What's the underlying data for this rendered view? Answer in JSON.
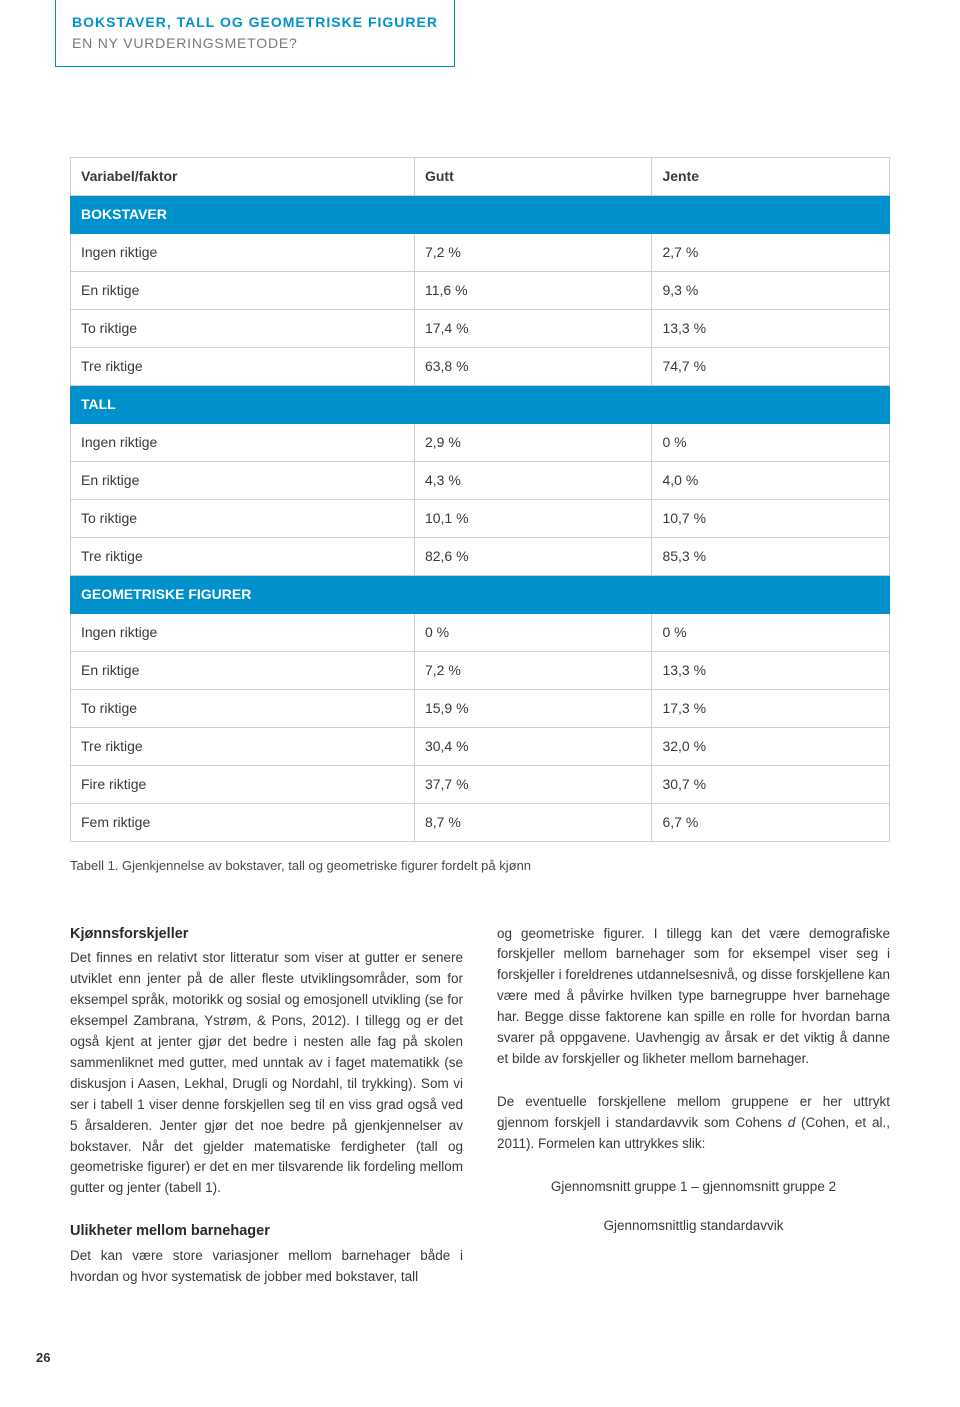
{
  "header": {
    "title": "BOKSTAVER, TALL OG GEOMETRISKE FIGURER",
    "subtitle": "EN NY VURDERINGSMETODE?"
  },
  "table": {
    "columns": [
      "Variabel/faktor",
      "Gutt",
      "Jente"
    ],
    "sections": [
      {
        "label": "BOKSTAVER",
        "rows": [
          [
            "Ingen riktige",
            "7,2 %",
            "2,7 %"
          ],
          [
            "En riktige",
            "11,6 %",
            "9,3 %"
          ],
          [
            "To riktige",
            "17,4 %",
            "13,3 %"
          ],
          [
            "Tre riktige",
            "63,8 %",
            "74,7 %"
          ]
        ]
      },
      {
        "label": "TALL",
        "rows": [
          [
            "Ingen riktige",
            "2,9 %",
            "0 %"
          ],
          [
            "En riktige",
            "4,3 %",
            "4,0 %"
          ],
          [
            "To riktige",
            "10,1 %",
            "10,7 %"
          ],
          [
            "Tre riktige",
            "82,6 %",
            "85,3 %"
          ]
        ]
      },
      {
        "label": "GEOMETRISKE FIGURER",
        "rows": [
          [
            "Ingen riktige",
            "0 %",
            "0 %"
          ],
          [
            "En riktige",
            "7,2 %",
            "13,3 %"
          ],
          [
            "To riktige",
            "15,9 %",
            "17,3 %"
          ],
          [
            "Tre riktige",
            "30,4 %",
            "32,0 %"
          ],
          [
            "Fire riktige",
            "37,7 %",
            "30,7 %"
          ],
          [
            "Fem riktige",
            "8,7 %",
            "6,7 %"
          ]
        ]
      }
    ]
  },
  "caption": "Tabell 1. Gjenkjennelse av bokstaver, tall og geometriske figurer fordelt på kjønn",
  "left": {
    "heading1": "Kjønnsforskjeller",
    "para1": "Det finnes en relativt stor litteratur som viser at gutter er senere utviklet enn jenter på de aller fleste utviklingsområder, som for eksempel språk, motorikk og sosial og emosjonell utvikling (se for eksempel Zambrana, Ystrøm, & Pons, 2012). I tillegg og er det også kjent at jenter gjør det bedre i nesten alle fag på skolen sammenliknet med gutter, med unntak av i faget matematikk (se diskusjon i Aasen, Lekhal, Drugli og Nordahl, til trykking). Som vi ser i tabell 1 viser denne forskjellen seg til en viss grad også ved 5 årsalderen. Jenter gjør det noe bedre på gjenkjennelser av bokstaver. Når det gjelder matematiske ferdigheter (tall og geometriske figurer) er det en mer tilsvarende lik fordeling mellom gutter og jenter (tabell 1).",
    "heading2": "Ulikheter mellom barnehager",
    "para2": "Det kan være store variasjoner mellom barnehager både i hvordan og hvor systematisk de jobber med bokstaver, tall"
  },
  "right": {
    "para1": "og geometriske figurer. I tillegg kan det være demografiske forskjeller mellom barnehager som for eksempel viser seg i forskjeller i foreldrenes utdannelsesnivå, og disse forskjellene kan være med å påvirke hvilken type barnegruppe hver barnehage har. Begge disse faktorene kan spille en rolle for hvordan barna svarer på oppgavene. Uavhengig av årsak er det viktig å danne et bilde av forskjeller og likheter mellom barnehager.",
    "para2_pre": "De eventuelle forskjellene mellom gruppene er her uttrykt gjennom forskjell i standardavvik som Cohens ",
    "para2_d": "d",
    "para2_post": " (Cohen, et al., 2011). Formelen kan uttrykkes slik:",
    "formula_line1": "Gjennomsnitt gruppe 1 – gjennomsnitt gruppe 2",
    "formula_line2": "Gjennomsnittlig standardavvik"
  },
  "page_number": "26",
  "colors": {
    "accent": "#0091cc",
    "text": "#3a3a3a",
    "border": "#cfcfcf"
  }
}
